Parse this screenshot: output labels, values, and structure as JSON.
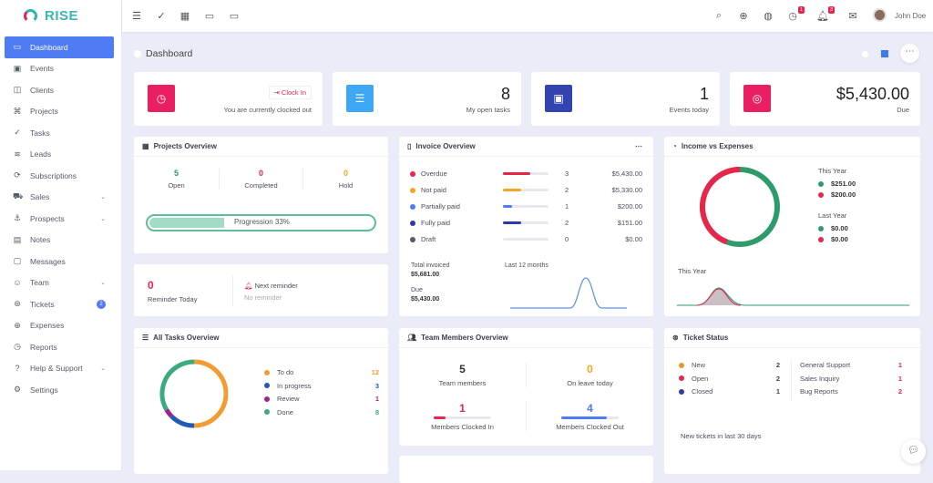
{
  "brand": {
    "name": "RISE"
  },
  "sidebar": {
    "items": [
      {
        "label": "Dashboard",
        "icon": "monitor-icon",
        "active": true
      },
      {
        "label": "Events",
        "icon": "calendar-icon"
      },
      {
        "label": "Clients",
        "icon": "briefcase-icon"
      },
      {
        "label": "Projects",
        "icon": "command-icon"
      },
      {
        "label": "Tasks",
        "icon": "check-circle-icon"
      },
      {
        "label": "Leads",
        "icon": "layers-icon"
      },
      {
        "label": "Subscriptions",
        "icon": "repeat-icon"
      },
      {
        "label": "Sales",
        "icon": "cart-icon",
        "chevron": true
      },
      {
        "label": "Prospects",
        "icon": "anchor-icon",
        "chevron": true
      },
      {
        "label": "Notes",
        "icon": "book-icon"
      },
      {
        "label": "Messages",
        "icon": "message-icon"
      },
      {
        "label": "Team",
        "icon": "users-icon",
        "chevron": true
      },
      {
        "label": "Tickets",
        "icon": "life-buoy-icon",
        "badge": "2"
      },
      {
        "label": "Expenses",
        "icon": "plus-circle-icon"
      },
      {
        "label": "Reports",
        "icon": "clock-icon"
      },
      {
        "label": "Help & Support",
        "icon": "help-icon",
        "chevron": true
      },
      {
        "label": "Settings",
        "icon": "gear-icon"
      }
    ]
  },
  "topbar": {
    "user": "John Doe",
    "reminders_badge": "1",
    "notifications_badge": "3"
  },
  "page": {
    "title": "Dashboard"
  },
  "widgets": {
    "clock": {
      "button": "Clock In",
      "status": "You are currently clocked out"
    },
    "open_tasks": {
      "value": "8",
      "label": "My open tasks"
    },
    "events": {
      "value": "1",
      "label": "Events today"
    },
    "due": {
      "value": "$5,430.00",
      "label": "Due"
    }
  },
  "projects": {
    "title": "Projects Overview",
    "open": "5",
    "open_label": "Open",
    "completed": "0",
    "completed_label": "Completed",
    "hold": "0",
    "hold_label": "Hold",
    "progress_label": "Progression 33%",
    "progress": 33
  },
  "reminder": {
    "count": "0",
    "label": "Reminder Today",
    "next_label": "Next reminder",
    "next_value": "No reminder"
  },
  "invoice": {
    "title": "Invoice Overview",
    "rows": [
      {
        "label": "Overdue",
        "count": "3",
        "amount": "$5,430.00",
        "color": "#e8254b",
        "fill": 60
      },
      {
        "label": "Not paid",
        "count": "2",
        "amount": "$5,330.00",
        "color": "#f5a623",
        "fill": 40
      },
      {
        "label": "Partially paid",
        "count": "1",
        "amount": "$200.00",
        "color": "#4f7cf4",
        "fill": 20
      },
      {
        "label": "Fully paid",
        "count": "2",
        "amount": "$151.00",
        "color": "#2e3aa8",
        "fill": 40
      },
      {
        "label": "Draft",
        "count": "0",
        "amount": "$0.00",
        "color": "#555b6b",
        "fill": 0
      }
    ],
    "total_label": "Total invoiced",
    "total": "$5,681.00",
    "due_label": "Due",
    "due": "$5,430.00",
    "chart_label": "Last 12 months"
  },
  "income": {
    "title": "Income vs Expenses",
    "this_year": "This Year",
    "income_this": "$251.00",
    "expense_this": "$200.00",
    "last_year": "Last Year",
    "income_last": "$0.00",
    "expense_last": "$0.00",
    "chart_label": "This Year",
    "income_color": "#2e9b6c",
    "expense_color": "#e8254b"
  },
  "tasks": {
    "title": "All Tasks Overview",
    "items": [
      {
        "label": "To do",
        "value": "12",
        "color": "#f39c34"
      },
      {
        "label": "In progress",
        "value": "3",
        "color": "#1f5bb5"
      },
      {
        "label": "Review",
        "value": "1",
        "color": "#a0228e"
      },
      {
        "label": "Done",
        "value": "8",
        "color": "#3bab7f"
      }
    ]
  },
  "team": {
    "title": "Team Members Overview",
    "members": "5",
    "members_label": "Team members",
    "leave": "0",
    "leave_label": "On leave today",
    "in": "1",
    "in_label": "Members Clocked In",
    "out": "4",
    "out_label": "Members Clocked Out"
  },
  "tickets": {
    "title": "Ticket Status",
    "status": [
      {
        "label": "New",
        "value": "2",
        "color": "#e59b2a"
      },
      {
        "label": "Open",
        "value": "2",
        "color": "#e8254b"
      },
      {
        "label": "Closed",
        "value": "1",
        "color": "#2e3aa8"
      }
    ],
    "types": [
      {
        "label": "General Support",
        "value": "1"
      },
      {
        "label": "Sales Inquiry",
        "value": "1"
      },
      {
        "label": "Bug Reports",
        "value": "2"
      }
    ],
    "footer": "New tickets in last 30 days"
  }
}
